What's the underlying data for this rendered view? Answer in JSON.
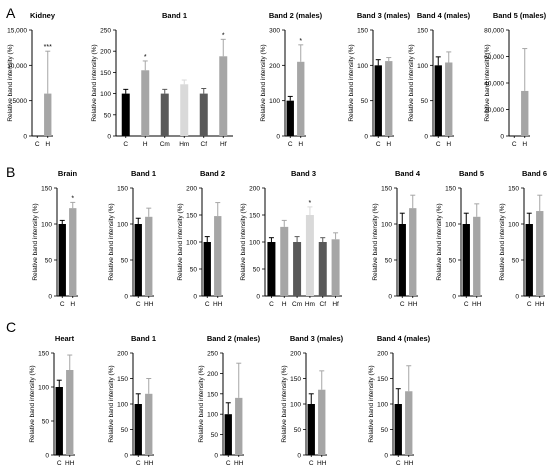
{
  "panels": [
    {
      "letter": "A"
    },
    {
      "letter": "B"
    },
    {
      "letter": "C"
    }
  ],
  "chart_data": [
    {
      "type": "bar",
      "panel": "A",
      "title": "Kidney",
      "ylabel": "Relative band intensity (%)",
      "categories": [
        "C",
        "H"
      ],
      "values": [
        0,
        6000
      ],
      "errors": [
        0,
        6000
      ],
      "colors": [
        "#000000",
        "#a6a6a6"
      ],
      "significance": [
        "",
        "***"
      ],
      "ylim": [
        0,
        15000
      ],
      "yticks": [
        0,
        5000,
        10000,
        15000
      ],
      "ytick_labels": [
        "0",
        "5000",
        "10,000",
        "15,000"
      ]
    },
    {
      "type": "bar",
      "panel": "A",
      "title": "Band 1",
      "ylabel": "Relative band intensity (%)",
      "categories": [
        "C",
        "H",
        "Cm",
        "Hm",
        "Cf",
        "Hf"
      ],
      "values": [
        100,
        155,
        100,
        122,
        100,
        188
      ],
      "errors": [
        10,
        22,
        10,
        10,
        12,
        40
      ],
      "colors": [
        "#000000",
        "#a6a6a6",
        "#595959",
        "#d9d9d9",
        "#595959",
        "#a6a6a6"
      ],
      "significance": [
        "",
        "*",
        "",
        "",
        "",
        "*"
      ],
      "ylim": [
        0,
        250
      ],
      "yticks": [
        0,
        50,
        100,
        150,
        200,
        250
      ],
      "ytick_labels": [
        "0",
        "50",
        "100",
        "150",
        "200",
        "250"
      ]
    },
    {
      "type": "bar",
      "panel": "A",
      "title": "Band 2 (males)",
      "ylabel": "Relative band intensity (%)",
      "categories": [
        "C",
        "H"
      ],
      "values": [
        100,
        210
      ],
      "errors": [
        12,
        48
      ],
      "colors": [
        "#000000",
        "#a6a6a6"
      ],
      "significance": [
        "",
        "*"
      ],
      "ylim": [
        0,
        300
      ],
      "yticks": [
        0,
        100,
        200,
        300
      ],
      "ytick_labels": [
        "0",
        "100",
        "200",
        "300"
      ]
    },
    {
      "type": "bar",
      "panel": "A",
      "title": "Band 3 (males)",
      "ylabel": "Relative band intensity (%)",
      "categories": [
        "C",
        "H"
      ],
      "values": [
        100,
        106
      ],
      "errors": [
        8,
        5
      ],
      "colors": [
        "#000000",
        "#a6a6a6"
      ],
      "significance": [
        "",
        ""
      ],
      "ylim": [
        0,
        150
      ],
      "yticks": [
        0,
        50,
        100,
        150
      ],
      "ytick_labels": [
        "0",
        "50",
        "100",
        "150"
      ]
    },
    {
      "type": "bar",
      "panel": "A",
      "title": "Band 4 (males)",
      "ylabel": "Relative band intensity (%)",
      "categories": [
        "C",
        "H"
      ],
      "values": [
        100,
        104
      ],
      "errors": [
        12,
        15
      ],
      "colors": [
        "#000000",
        "#a6a6a6"
      ],
      "significance": [
        "",
        ""
      ],
      "ylim": [
        0,
        150
      ],
      "yticks": [
        0,
        50,
        100,
        150
      ],
      "ytick_labels": [
        "0",
        "50",
        "100",
        "150"
      ]
    },
    {
      "type": "bar",
      "panel": "A",
      "title": "Band 5 (males)",
      "ylabel": "Relative band intensity (%)",
      "categories": [
        "C",
        "H"
      ],
      "values": [
        0,
        34000
      ],
      "errors": [
        0,
        32000
      ],
      "colors": [
        "#000000",
        "#a6a6a6"
      ],
      "significance": [
        "",
        ""
      ],
      "ylim": [
        0,
        80000
      ],
      "yticks": [
        0,
        20000,
        40000,
        60000,
        80000
      ],
      "ytick_labels": [
        "0",
        "20,000",
        "40,000",
        "60,000",
        "80,000"
      ]
    },
    {
      "type": "bar",
      "panel": "B",
      "title": "Brain",
      "ylabel": "Relative band intensity (%)",
      "categories": [
        "C",
        "H"
      ],
      "values": [
        100,
        122
      ],
      "errors": [
        5,
        8
      ],
      "colors": [
        "#000000",
        "#a6a6a6"
      ],
      "significance": [
        "",
        "*"
      ],
      "ylim": [
        0,
        150
      ],
      "yticks": [
        0,
        50,
        100,
        150
      ],
      "ytick_labels": [
        "0",
        "50",
        "100",
        "150"
      ]
    },
    {
      "type": "bar",
      "panel": "B",
      "title": "Band 1",
      "ylabel": "Relative band intensity (%)",
      "categories": [
        "C",
        "HH"
      ],
      "values": [
        100,
        110
      ],
      "errors": [
        8,
        12
      ],
      "colors": [
        "#000000",
        "#a6a6a6"
      ],
      "significance": [
        "",
        ""
      ],
      "ylim": [
        0,
        150
      ],
      "yticks": [
        0,
        50,
        100,
        150
      ],
      "ytick_labels": [
        "0",
        "50",
        "100",
        "150"
      ]
    },
    {
      "type": "bar",
      "panel": "B",
      "title": "Band 2",
      "ylabel": "Relative band intensity (%)",
      "categories": [
        "C",
        "HH"
      ],
      "values": [
        100,
        148
      ],
      "errors": [
        10,
        25
      ],
      "colors": [
        "#000000",
        "#a6a6a6"
      ],
      "significance": [
        "",
        ""
      ],
      "ylim": [
        0,
        200
      ],
      "yticks": [
        0,
        50,
        100,
        150,
        200
      ],
      "ytick_labels": [
        "0",
        "50",
        "100",
        "150",
        "200"
      ]
    },
    {
      "type": "bar",
      "panel": "B",
      "title": "Band 3",
      "ylabel": "Relative band intensity (%)",
      "categories": [
        "C",
        "H",
        "Cm",
        "Hm",
        "Cf",
        "Hf"
      ],
      "values": [
        100,
        128,
        100,
        150,
        100,
        105
      ],
      "errors": [
        8,
        12,
        10,
        15,
        8,
        12
      ],
      "colors": [
        "#000000",
        "#a6a6a6",
        "#595959",
        "#d9d9d9",
        "#595959",
        "#a6a6a6"
      ],
      "significance": [
        "",
        "",
        "",
        "*",
        "",
        ""
      ],
      "ylim": [
        0,
        200
      ],
      "yticks": [
        0,
        50,
        100,
        150,
        200
      ],
      "ytick_labels": [
        "0",
        "50",
        "100",
        "150",
        "200"
      ]
    },
    {
      "type": "bar",
      "panel": "B",
      "title": "Band 4",
      "ylabel": "Relative band intensity (%)",
      "categories": [
        "C",
        "HH"
      ],
      "values": [
        100,
        122
      ],
      "errors": [
        15,
        18
      ],
      "colors": [
        "#000000",
        "#a6a6a6"
      ],
      "significance": [
        "",
        ""
      ],
      "ylim": [
        0,
        150
      ],
      "yticks": [
        0,
        50,
        100,
        150
      ],
      "ytick_labels": [
        "0",
        "50",
        "100",
        "150"
      ]
    },
    {
      "type": "bar",
      "panel": "B",
      "title": "Band 5",
      "ylabel": "Relative band intensity (%)",
      "categories": [
        "C",
        "HH"
      ],
      "values": [
        100,
        110
      ],
      "errors": [
        15,
        18
      ],
      "colors": [
        "#000000",
        "#a6a6a6"
      ],
      "significance": [
        "",
        ""
      ],
      "ylim": [
        0,
        150
      ],
      "yticks": [
        0,
        50,
        100,
        150
      ],
      "ytick_labels": [
        "0",
        "50",
        "100",
        "150"
      ]
    },
    {
      "type": "bar",
      "panel": "B",
      "title": "Band 6",
      "ylabel": "Relative band intensity (%)",
      "categories": [
        "C",
        "HH"
      ],
      "values": [
        100,
        118
      ],
      "errors": [
        15,
        22
      ],
      "colors": [
        "#000000",
        "#a6a6a6"
      ],
      "significance": [
        "",
        ""
      ],
      "ylim": [
        0,
        150
      ],
      "yticks": [
        0,
        50,
        100,
        150
      ],
      "ytick_labels": [
        "0",
        "50",
        "100",
        "150"
      ]
    },
    {
      "type": "bar",
      "panel": "C",
      "title": "Heart",
      "ylabel": "Relative band intensity (%)",
      "categories": [
        "C",
        "HH"
      ],
      "values": [
        100,
        125
      ],
      "errors": [
        10,
        22
      ],
      "colors": [
        "#000000",
        "#a6a6a6"
      ],
      "significance": [
        "",
        ""
      ],
      "ylim": [
        0,
        150
      ],
      "yticks": [
        0,
        50,
        100,
        150
      ],
      "ytick_labels": [
        "0",
        "50",
        "100",
        "150"
      ]
    },
    {
      "type": "bar",
      "panel": "C",
      "title": "Band 1",
      "ylabel": "Relative band intensity (%)",
      "categories": [
        "C",
        "HH"
      ],
      "values": [
        100,
        120
      ],
      "errors": [
        20,
        30
      ],
      "colors": [
        "#000000",
        "#a6a6a6"
      ],
      "significance": [
        "",
        ""
      ],
      "ylim": [
        0,
        200
      ],
      "yticks": [
        0,
        50,
        100,
        150,
        200
      ],
      "ytick_labels": [
        "0",
        "50",
        "100",
        "150",
        "200"
      ]
    },
    {
      "type": "bar",
      "panel": "C",
      "title": "Band 2 (males)",
      "ylabel": "Relative band intensity (%)",
      "categories": [
        "C",
        "HH"
      ],
      "values": [
        100,
        140
      ],
      "errors": [
        28,
        85
      ],
      "colors": [
        "#000000",
        "#a6a6a6"
      ],
      "significance": [
        "",
        ""
      ],
      "ylim": [
        0,
        250
      ],
      "yticks": [
        0,
        50,
        100,
        150,
        200,
        250
      ],
      "ytick_labels": [
        "0",
        "50",
        "100",
        "150",
        "200",
        "250"
      ]
    },
    {
      "type": "bar",
      "panel": "C",
      "title": "Band 3 (males)",
      "ylabel": "Relative band intensity (%)",
      "categories": [
        "C",
        "HH"
      ],
      "values": [
        100,
        128
      ],
      "errors": [
        20,
        37
      ],
      "colors": [
        "#000000",
        "#a6a6a6"
      ],
      "significance": [
        "",
        ""
      ],
      "ylim": [
        0,
        200
      ],
      "yticks": [
        0,
        50,
        100,
        150,
        200
      ],
      "ytick_labels": [
        "0",
        "50",
        "100",
        "150",
        "200"
      ]
    },
    {
      "type": "bar",
      "panel": "C",
      "title": "Band 4 (males)",
      "ylabel": "Relative band intensity (%)",
      "categories": [
        "C",
        "HH"
      ],
      "values": [
        100,
        125
      ],
      "errors": [
        30,
        50
      ],
      "colors": [
        "#000000",
        "#a6a6a6"
      ],
      "significance": [
        "",
        ""
      ],
      "ylim": [
        0,
        200
      ],
      "yticks": [
        0,
        50,
        100,
        150,
        200
      ],
      "ytick_labels": [
        "0",
        "50",
        "100",
        "150",
        "200"
      ]
    }
  ]
}
